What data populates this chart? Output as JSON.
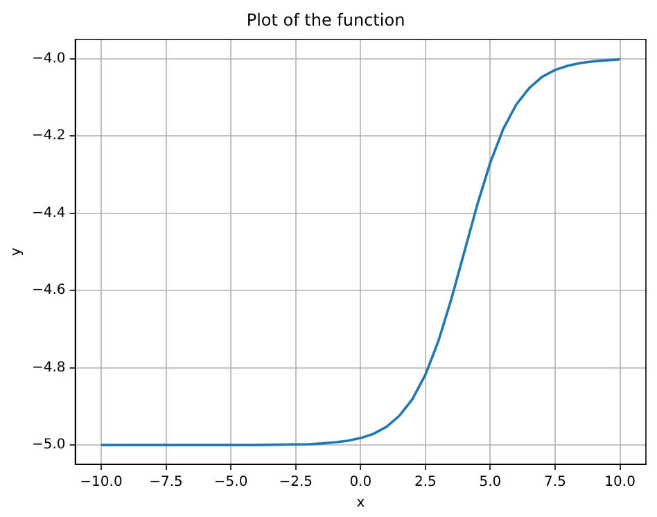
{
  "chart_data": {
    "type": "line",
    "title": "Plot of the function",
    "xlabel": "x",
    "ylabel": "y",
    "x": [
      -10,
      -7.5,
      -5,
      -4,
      -3,
      -2,
      -1.5,
      -1,
      -0.5,
      0,
      0.5,
      1,
      1.5,
      2,
      2.5,
      3,
      3.5,
      4,
      4.5,
      5,
      5.5,
      6,
      6.5,
      7,
      7.5,
      8,
      8.5,
      9,
      9.5,
      10
    ],
    "series": [
      {
        "color": "#1f77b4",
        "values": [
          -5.0,
          -5.0,
          -5.0,
          -5.0,
          -4.999,
          -4.998,
          -4.996,
          -4.993,
          -4.989,
          -4.982,
          -4.971,
          -4.953,
          -4.924,
          -4.881,
          -4.818,
          -4.731,
          -4.622,
          -4.5,
          -4.378,
          -4.269,
          -4.182,
          -4.119,
          -4.076,
          -4.047,
          -4.029,
          -4.018,
          -4.011,
          -4.007,
          -4.004,
          -4.002
        ]
      }
    ],
    "xlim": [
      -11,
      11
    ],
    "ylim": [
      -5.05,
      -3.95
    ],
    "xticks": [
      {
        "value": -10,
        "label": "−10.0"
      },
      {
        "value": -7.5,
        "label": "−7.5"
      },
      {
        "value": -5,
        "label": "−5.0"
      },
      {
        "value": -2.5,
        "label": "−2.5"
      },
      {
        "value": 0,
        "label": "0.0"
      },
      {
        "value": 2.5,
        "label": "2.5"
      },
      {
        "value": 5,
        "label": "5.0"
      },
      {
        "value": 7.5,
        "label": "7.5"
      },
      {
        "value": 10,
        "label": "10.0"
      }
    ],
    "yticks": [
      {
        "value": -5,
        "label": "−5.0"
      },
      {
        "value": -4.8,
        "label": "−4.8"
      },
      {
        "value": -4.6,
        "label": "−4.6"
      },
      {
        "value": -4.4,
        "label": "−4.4"
      },
      {
        "value": -4.2,
        "label": "−4.2"
      },
      {
        "value": -4,
        "label": "−4.0"
      }
    ],
    "grid": true,
    "marker": "none",
    "line_style": "solid",
    "legend": false
  }
}
